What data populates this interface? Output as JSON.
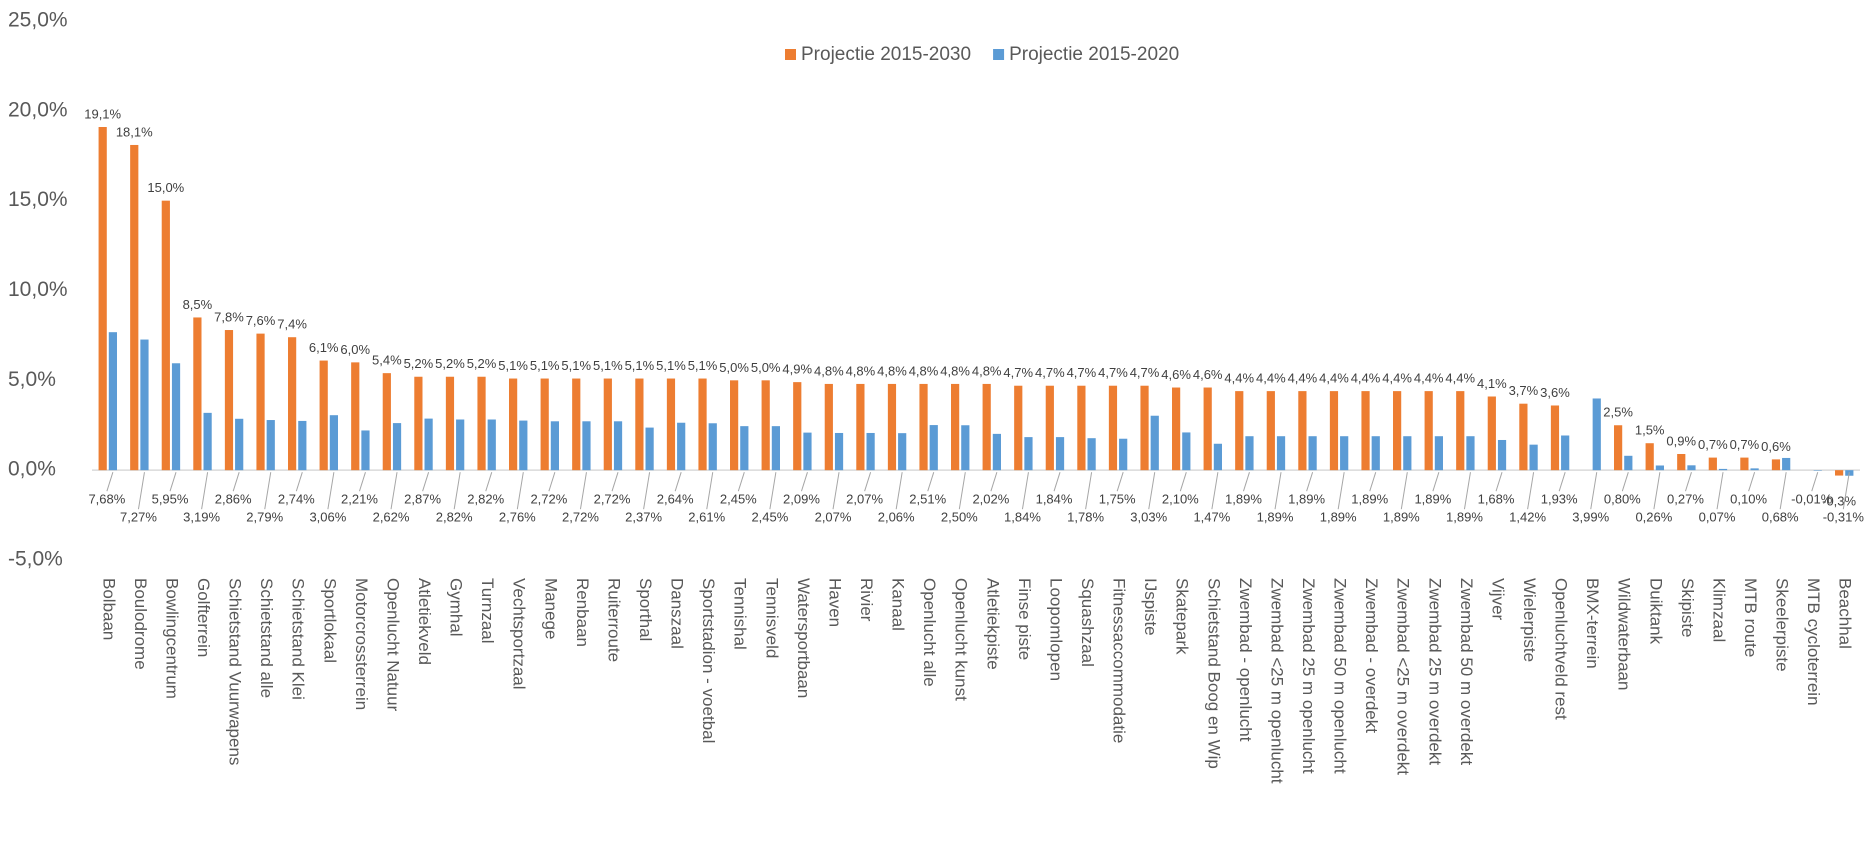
{
  "chart_data": {
    "type": "bar",
    "categories": [
      "Bolbaan",
      "Boulodrome",
      "Bowlingcentrum",
      "Golfterrein",
      "Schietstand Vuurwapens",
      "Schietstand alle",
      "Schietstand Klei",
      "Sportlokaal",
      "Motorcrossterrein",
      "Openlucht Natuur",
      "Atletiekveld",
      "Gymhal",
      "Turnzaal",
      "Vechtsportzaal",
      "Manege",
      "Renbaan",
      "Ruiterroute",
      "Sporthal",
      "Danszaal",
      "Sportstadion - voetbal",
      "Tennishal",
      "Tennisveld",
      "Watersportbaan",
      "Haven",
      "Rivier",
      "Kanaal",
      "Openlucht alle",
      "Openlucht kunst",
      "Atletiekpiste",
      "Finse piste",
      "Loopomlopen",
      "Squashzaal",
      "Fitnessaccommodatie",
      "IJspiste",
      "Skatepark",
      "Schietstand Boog en Wip",
      "Zwembad - openlucht",
      "Zwembad <25 m openlucht",
      "Zwembad 25 m openlucht",
      "Zwembad 50 m openlucht",
      "Zwembad - overdekt",
      "Zwembad <25 m overdekt",
      "Zwembad 25 m overdekt",
      "Zwembad 50 m overdekt",
      "Vijver",
      "Wielerpiste",
      "Openluchtveld rest",
      "BMX-terrein",
      "Wildwaterbaan",
      "Duiktank",
      "Skipiste",
      "Klimzaal",
      "MTB route",
      "Skeelerpiste",
      "MTB cycloterrein",
      "Beachhal"
    ],
    "series": [
      {
        "name": "Projectie 2015-2030",
        "color": "#ed7d31",
        "values": [
          19.1,
          18.1,
          15.0,
          8.5,
          7.8,
          7.6,
          7.4,
          6.1,
          6.0,
          5.4,
          5.2,
          5.2,
          5.2,
          5.1,
          5.1,
          5.1,
          5.1,
          5.1,
          5.1,
          5.1,
          5.0,
          5.0,
          4.9,
          4.8,
          4.8,
          4.8,
          4.8,
          4.8,
          4.8,
          4.7,
          4.7,
          4.7,
          4.7,
          4.7,
          4.6,
          4.6,
          4.4,
          4.4,
          4.4,
          4.4,
          4.4,
          4.4,
          4.4,
          4.4,
          4.1,
          3.7,
          3.6,
          null,
          2.5,
          1.5,
          0.9,
          0.7,
          0.7,
          0.6,
          null,
          -0.3
        ],
        "value_labels": [
          "19,1%",
          "18,1%",
          "15,0%",
          "8,5%",
          "7,8%",
          "7,6%",
          "7,4%",
          "6,1%",
          "6,0%",
          "5,4%",
          "5,2%",
          "5,2%",
          "5,2%",
          "5,1%",
          "5,1%",
          "5,1%",
          "5,1%",
          "5,1%",
          "5,1%",
          "5,1%",
          "5,0%",
          "5,0%",
          "4,9%",
          "4,8%",
          "4,8%",
          "4,8%",
          "4,8%",
          "4,8%",
          "4,8%",
          "4,7%",
          "4,7%",
          "4,7%",
          "4,7%",
          "4,7%",
          "4,6%",
          "4,6%",
          "4,4%",
          "4,4%",
          "4,4%",
          "4,4%",
          "4,4%",
          "4,4%",
          "4,4%",
          "4,4%",
          "4,1%",
          "3,7%",
          "3,6%",
          null,
          "2,5%",
          "1,5%",
          "0,9%",
          "0,7%",
          "0,7%",
          "0,6%",
          null,
          "-0,3%"
        ]
      },
      {
        "name": "Projectie 2015-2020",
        "color": "#5b9bd5",
        "values": [
          7.68,
          7.27,
          5.95,
          3.19,
          2.86,
          2.79,
          2.74,
          3.06,
          2.21,
          2.62,
          2.87,
          2.82,
          2.82,
          2.76,
          2.72,
          2.72,
          2.72,
          2.37,
          2.64,
          2.61,
          2.45,
          2.45,
          2.09,
          2.07,
          2.07,
          2.06,
          2.51,
          2.5,
          2.02,
          1.84,
          1.84,
          1.78,
          1.75,
          3.03,
          2.1,
          1.47,
          1.89,
          1.89,
          1.89,
          1.89,
          1.89,
          1.89,
          1.89,
          1.89,
          1.68,
          1.42,
          1.93,
          3.99,
          0.8,
          0.26,
          0.27,
          0.07,
          0.1,
          0.68,
          -0.01,
          -0.31
        ],
        "value_labels": [
          "7,68%",
          "7,27%",
          "5,95%",
          "3,19%",
          "2,86%",
          "2,79%",
          "2,74%",
          "3,06%",
          "2,21%",
          "2,62%",
          "2,87%",
          "2,82%",
          "2,82%",
          "2,76%",
          "2,72%",
          "2,72%",
          "2,72%",
          "2,37%",
          "2,64%",
          "2,61%",
          "2,45%",
          "2,45%",
          "2,09%",
          "2,07%",
          "2,07%",
          "2,06%",
          "2,51%",
          "2,50%",
          "2,02%",
          "1,84%",
          "1,84%",
          "1,78%",
          "1,75%",
          "3,03%",
          "2,10%",
          "1,47%",
          "1,89%",
          "1,89%",
          "1,89%",
          "1,89%",
          "1,89%",
          "1,89%",
          "1,89%",
          "1,89%",
          "1,68%",
          "1,42%",
          "1,93%",
          "3,99%",
          "0,80%",
          "0,26%",
          "0,27%",
          "0,07%",
          "0,10%",
          "0,68%",
          "-0,01%",
          "-0,31%"
        ]
      }
    ],
    "ylim": [
      -5,
      25
    ],
    "yticks": [
      {
        "value": -5,
        "label": "-5,0%"
      },
      {
        "value": 0,
        "label": "0,0%"
      },
      {
        "value": 5,
        "label": "5,0%"
      },
      {
        "value": 10,
        "label": "10,0%"
      },
      {
        "value": 15,
        "label": "15,0%"
      },
      {
        "value": 20,
        "label": "20,0%"
      },
      {
        "value": 25,
        "label": "25,0%"
      }
    ],
    "grid": false,
    "legend": "top"
  }
}
